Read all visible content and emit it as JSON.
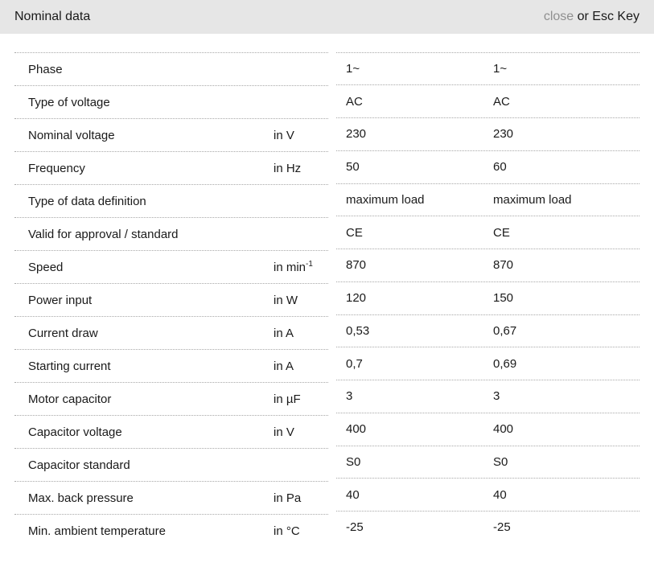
{
  "header": {
    "title": "Nominal data",
    "close_label": "close",
    "close_suffix": " or Esc Key"
  },
  "colors": {
    "header_bg": "#e6e6e6",
    "muted": "#8f8f8f",
    "text": "#1a1a1a",
    "divider": "#a8a8a8",
    "page_bg": "#ffffff"
  },
  "table": {
    "rows": [
      {
        "label": "Phase",
        "unit": "",
        "unit_sup": "",
        "v1": "1~",
        "v2": "1~"
      },
      {
        "label": "Type of voltage",
        "unit": "",
        "unit_sup": "",
        "v1": "AC",
        "v2": "AC"
      },
      {
        "label": "Nominal voltage",
        "unit": "in V",
        "unit_sup": "",
        "v1": "230",
        "v2": "230"
      },
      {
        "label": "Frequency",
        "unit": "in Hz",
        "unit_sup": "",
        "v1": "50",
        "v2": "60"
      },
      {
        "label": "Type of data definition",
        "unit": "",
        "unit_sup": "",
        "v1": "maximum load",
        "v2": "maximum load"
      },
      {
        "label": "Valid for approval / standard",
        "unit": "",
        "unit_sup": "",
        "v1": "CE",
        "v2": "CE"
      },
      {
        "label": "Speed",
        "unit": "in min",
        "unit_sup": "-1",
        "v1": "870",
        "v2": "870"
      },
      {
        "label": "Power input",
        "unit": "in W",
        "unit_sup": "",
        "v1": "120",
        "v2": "150"
      },
      {
        "label": "Current draw",
        "unit": "in A",
        "unit_sup": "",
        "v1": "0,53",
        "v2": "0,67"
      },
      {
        "label": "Starting current",
        "unit": "in A",
        "unit_sup": "",
        "v1": "0,7",
        "v2": "0,69"
      },
      {
        "label": "Motor capacitor",
        "unit": "in µF",
        "unit_sup": "",
        "v1": "3",
        "v2": "3"
      },
      {
        "label": "Capacitor voltage",
        "unit": "in V",
        "unit_sup": "",
        "v1": "400",
        "v2": "400"
      },
      {
        "label": "Capacitor standard",
        "unit": "",
        "unit_sup": "",
        "v1": "S0",
        "v2": "S0"
      },
      {
        "label": "Max. back pressure",
        "unit": "in Pa",
        "unit_sup": "",
        "v1": "40",
        "v2": "40"
      },
      {
        "label": "Min. ambient temperature",
        "unit": "in °C",
        "unit_sup": "",
        "v1": "-25",
        "v2": "-25"
      }
    ]
  }
}
